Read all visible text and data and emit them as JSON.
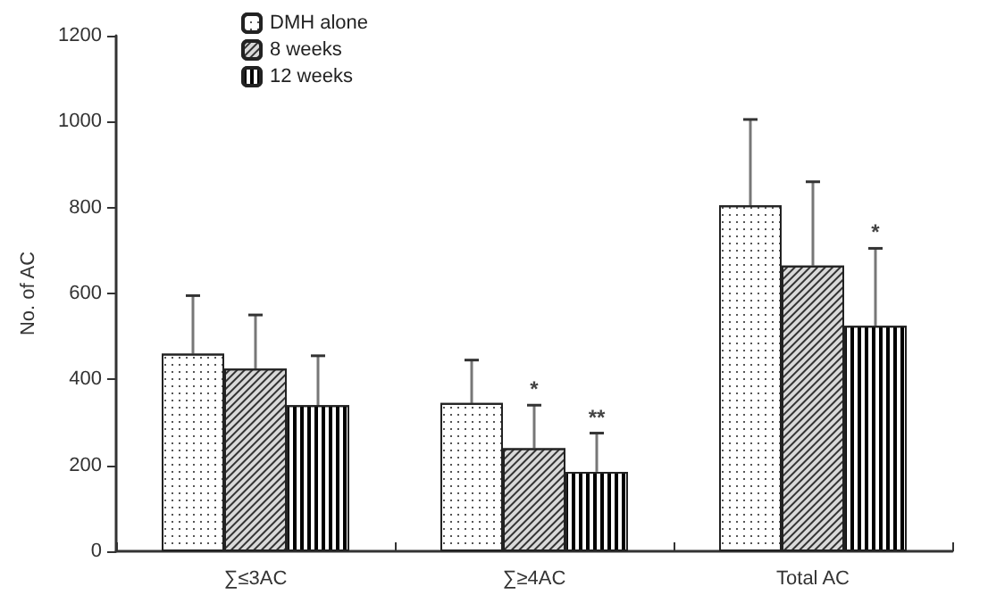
{
  "chart_data": {
    "type": "bar",
    "ylabel": "No. of AC",
    "categories": [
      "∑≤3AC",
      "∑≥4AC",
      "Total AC"
    ],
    "series": [
      {
        "name": "DMH alone",
        "color": "#ffffff",
        "values": [
          460,
          345,
          805
        ],
        "errors": [
          135,
          100,
          200
        ]
      },
      {
        "name": "8 weeks",
        "color": "#d9d9d9",
        "values": [
          425,
          240,
          665
        ],
        "errors": [
          125,
          100,
          195
        ]
      },
      {
        "name": "12 weeks",
        "color": "#ffffff",
        "values": [
          340,
          185,
          525
        ],
        "errors": [
          115,
          90,
          180
        ]
      }
    ],
    "ylim": [
      0,
      1200
    ],
    "yticks": [
      0,
      200,
      400,
      600,
      800,
      1000,
      1200
    ],
    "grid": false,
    "legend": "top left",
    "annotations": [
      {
        "text": "*",
        "x": "∑≥4AC",
        "y": 340
      },
      {
        "text": "**",
        "x": "∑≥4AC",
        "y": 275
      },
      {
        "text": "*",
        "x": "Total AC",
        "y": 705
      }
    ]
  }
}
